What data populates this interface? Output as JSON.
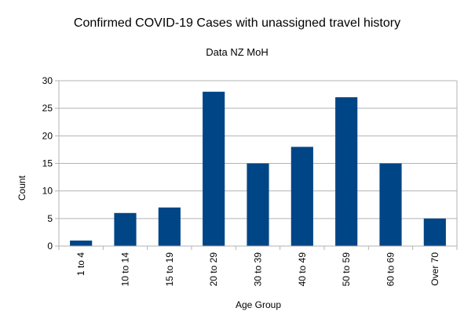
{
  "chart_data": {
    "type": "bar",
    "title": "Confirmed COVID-19 Cases with unassigned travel history",
    "subtitle": "Data NZ MoH",
    "xlabel": "Age Group",
    "ylabel": "Count",
    "categories": [
      "1 to 4",
      "10 to 14",
      "15 to 19",
      "20 to 29",
      "30 to 39",
      "40 to 49",
      "50 to 59",
      "60 to 69",
      "Over 70"
    ],
    "values": [
      1,
      6,
      7,
      28,
      15,
      18,
      27,
      15,
      5
    ],
    "ylim": [
      0,
      30
    ],
    "yticks": [
      0,
      5,
      10,
      15,
      20,
      25,
      30
    ],
    "grid": true,
    "legend": "none",
    "bar_color": "#004586"
  }
}
